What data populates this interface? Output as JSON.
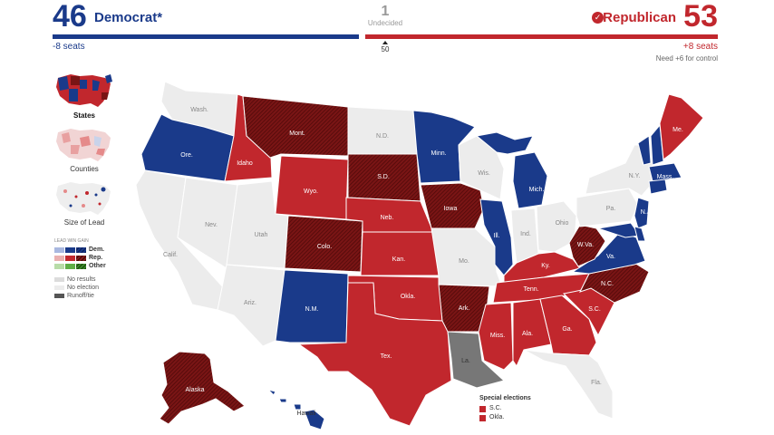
{
  "header": {
    "dem_count": "46",
    "dem_label": "Democrat*",
    "dem_change": "-8 seats",
    "rep_count": "53",
    "rep_label": "Republican",
    "rep_change": "+8 seats",
    "rep_need": "Need +6 for control",
    "undecided_count": "1",
    "undecided_label": "Undecided",
    "control_mark": "50",
    "check_icon": "check-circle-icon"
  },
  "colors": {
    "dem": "#1a3a8a",
    "rep": "#c1272d",
    "rep_gain": "#7a1515",
    "dem_gain": "#0e2260",
    "no_election": "#ececec",
    "runoff": "#777777"
  },
  "views": [
    {
      "label": "States",
      "active": true
    },
    {
      "label": "Counties",
      "active": false
    },
    {
      "label": "Size of Lead",
      "active": false
    }
  ],
  "legend": {
    "header": "LEAD  WIN  GAIN",
    "parties": [
      "Dem.",
      "Rep.",
      "Other"
    ],
    "status": [
      "No results",
      "No election",
      "Runoff/tie"
    ]
  },
  "special": {
    "title": "Special elections",
    "items": [
      "S.C.",
      "Okla."
    ]
  },
  "states": {
    "wash": "Wash.",
    "ore": "Ore.",
    "idaho": "Idaho",
    "mont": "Mont.",
    "wyo": "Wyo.",
    "nev": "Nev.",
    "calif": "Calif.",
    "utah": "Utah",
    "ariz": "Ariz.",
    "colo": "Colo.",
    "nm": "N.M.",
    "nd": "N.D.",
    "sd": "S.D.",
    "neb": "Neb.",
    "kan": "Kan.",
    "okla": "Okla.",
    "tex": "Tex.",
    "minn": "Minn.",
    "iowa": "Iowa",
    "mo": "Mo.",
    "ark": "Ark.",
    "la": "La.",
    "wis": "Wis.",
    "ill": "Ill.",
    "mich": "Mich.",
    "ind": "Ind.",
    "ohio": "Ohio",
    "ky": "Ky.",
    "tenn": "Tenn.",
    "miss": "Miss.",
    "ala": "Ala.",
    "ga": "Ga.",
    "fla": "Fla.",
    "sc": "S.C.",
    "nc": "N.C.",
    "va": "Va.",
    "wva": "W.Va.",
    "pa": "Pa.",
    "ny": "N.Y.",
    "nj": "N.J.",
    "mass": "Mass.",
    "me": "Me.",
    "alaska": "Alaska",
    "hawaii": "Hawaii"
  }
}
